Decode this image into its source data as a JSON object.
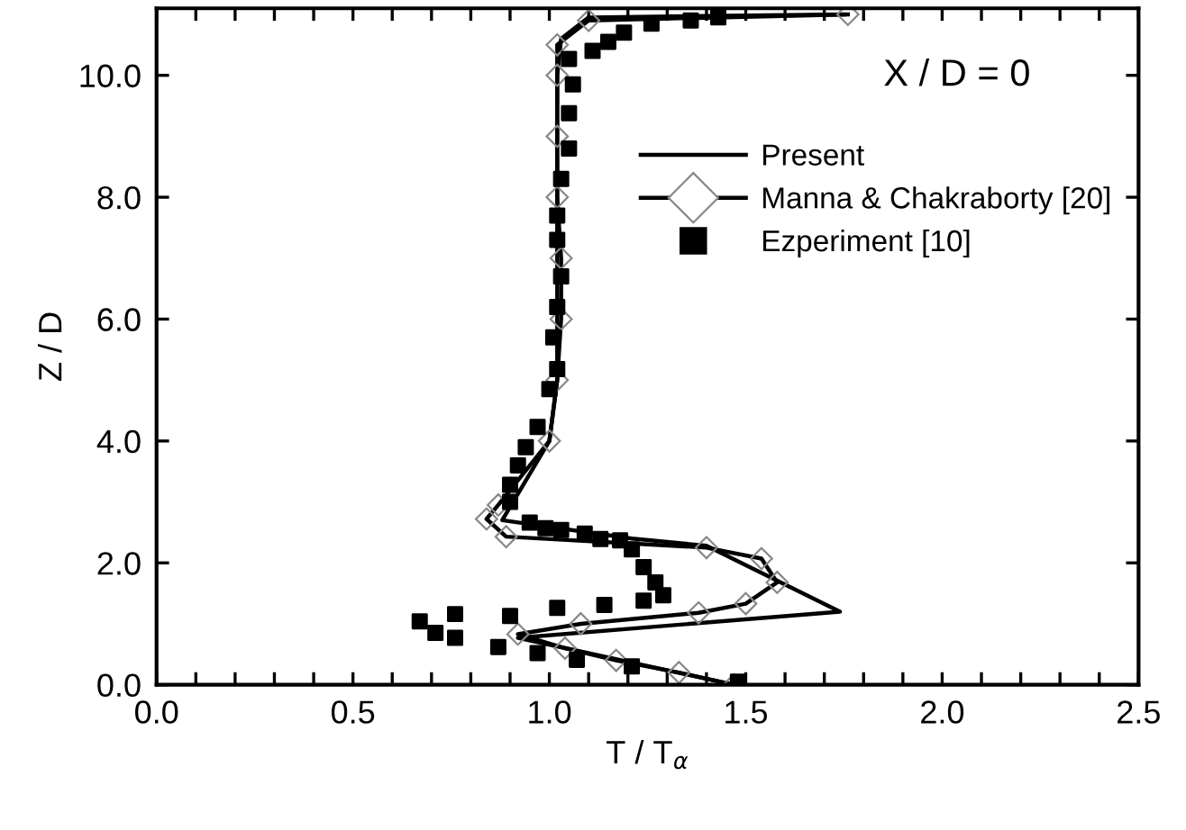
{
  "chart_data": {
    "type": "line",
    "xlabel": "T / T$_{α}$",
    "ylabel": "Z / D",
    "annotations": [
      "X / D = 0"
    ],
    "xlim": [
      0.0,
      2.5
    ],
    "ylim": [
      0.0,
      11.1
    ],
    "xticks": [
      {
        "value": 0,
        "label": "0.0"
      },
      {
        "value": 0.1,
        "label": null
      },
      {
        "value": 0.2,
        "label": null
      },
      {
        "value": 0.3,
        "label": null
      },
      {
        "value": 0.4,
        "label": null
      },
      0.5,
      {
        "value": 0.6,
        "label": null
      },
      {
        "value": 0.7,
        "label": null
      },
      {
        "value": 0.8,
        "label": null
      },
      {
        "value": 0.9,
        "label": null
      },
      {
        "value": 1,
        "label": "1.0"
      },
      {
        "value": 1.1,
        "label": null
      },
      {
        "value": 1.2,
        "label": null
      },
      {
        "value": 1.3,
        "label": null
      },
      {
        "value": 1.4,
        "label": null
      },
      1.5,
      {
        "value": 1.6,
        "label": null
      },
      {
        "value": 1.7,
        "label": null
      },
      {
        "value": 1.8,
        "label": null
      },
      {
        "value": 1.9,
        "label": null
      },
      {
        "value": 2,
        "label": "2.0"
      },
      {
        "value": 2.1,
        "label": null
      },
      {
        "value": 2.2,
        "label": null
      },
      {
        "value": 2.3,
        "label": null
      },
      {
        "value": 2.4,
        "label": null
      },
      2.5
    ],
    "yticks": [
      {
        "value": 0,
        "label": "0.0"
      },
      {
        "value": 2,
        "label": "2.0"
      },
      {
        "value": 4,
        "label": "4.0"
      },
      {
        "value": 6,
        "label": "6.0"
      },
      {
        "value": 8,
        "label": "8.0"
      },
      {
        "value": 10,
        "label": "10.0"
      }
    ],
    "legend": "top right",
    "grid": false,
    "series": [
      {
        "name": "Present",
        "color": "#000000",
        "marker": "none",
        "x": [
          1.47,
          0.92,
          1.74,
          1.4,
          1.21,
          0.88,
          1.0,
          1.02,
          1.02,
          1.02,
          1.03,
          1.1,
          1.75
        ],
        "values": [
          0.0,
          0.77,
          1.2,
          2.28,
          2.4,
          2.7,
          4.0,
          5.0,
          6.0,
          10.0,
          10.6,
          10.95,
          11.0
        ]
      },
      {
        "name": "Manna & Chakraborty [20]",
        "color": "#000000",
        "marker": "diamond",
        "x": [
          1.47,
          1.33,
          1.17,
          1.04,
          0.92,
          1.08,
          1.38,
          1.5,
          1.58,
          1.54,
          1.4,
          0.89,
          0.84,
          0.87,
          1.0,
          1.02,
          1.03,
          1.03,
          1.02,
          1.02,
          1.02,
          1.02,
          1.1,
          1.76
        ],
        "values": [
          0.0,
          0.2,
          0.4,
          0.6,
          0.83,
          1.0,
          1.18,
          1.33,
          1.68,
          2.07,
          2.25,
          2.43,
          2.72,
          2.95,
          4.0,
          5.0,
          6.0,
          7.0,
          8.0,
          9.0,
          10.0,
          10.5,
          10.9,
          11.0
        ]
      },
      {
        "name": "Ezperiment [10]",
        "color": "#000000",
        "type": "scatter",
        "marker": "square",
        "x": [
          1.48,
          1.21,
          1.07,
          0.97,
          0.87,
          0.76,
          0.71,
          0.67,
          0.76,
          0.9,
          1.02,
          1.14,
          1.24,
          1.29,
          1.27,
          1.24,
          1.21,
          1.18,
          1.13,
          1.09,
          1.03,
          0.99,
          0.95,
          0.9,
          0.9,
          0.92,
          0.94,
          0.97,
          1.0,
          1.02,
          1.01,
          1.02,
          1.03,
          1.02,
          1.02,
          1.03,
          1.05,
          1.05,
          1.06,
          1.05,
          1.11,
          1.15,
          1.19,
          1.26,
          1.36,
          1.43
        ],
        "values": [
          0.05,
          0.3,
          0.41,
          0.52,
          0.62,
          0.77,
          0.85,
          1.04,
          1.16,
          1.13,
          1.26,
          1.31,
          1.38,
          1.47,
          1.68,
          1.93,
          2.22,
          2.37,
          2.39,
          2.48,
          2.54,
          2.57,
          2.66,
          3.0,
          3.28,
          3.6,
          3.9,
          4.23,
          4.85,
          5.18,
          5.7,
          6.2,
          6.7,
          7.3,
          7.7,
          8.3,
          8.8,
          9.38,
          9.85,
          10.27,
          10.4,
          10.55,
          10.7,
          10.85,
          10.9,
          10.95
        ]
      }
    ]
  }
}
